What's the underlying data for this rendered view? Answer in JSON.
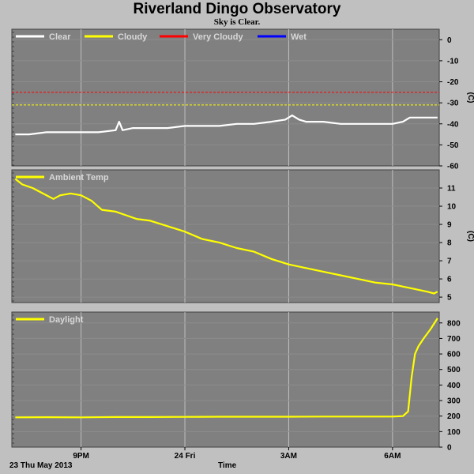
{
  "title": "Riverland Dingo Observatory",
  "subtitle": "Sky is Clear.",
  "footer": {
    "date_label": "23 Thu May 2013",
    "time_label": "Time"
  },
  "colors": {
    "plot_bg": "#808080",
    "page_bg": "#c0c0c0",
    "clear": "#ffffff",
    "cloudy": "#ffff00",
    "very_cloudy": "#ff0000",
    "wet": "#0000ff",
    "grid": "#bfbfbf"
  },
  "chart_data": [
    {
      "type": "line",
      "panel": "sky",
      "x_ticks": [
        {
          "label": "9PM",
          "x": 21.0
        },
        {
          "label": "24 Fri",
          "x": 24.0
        },
        {
          "label": "3AM",
          "x": 27.0
        },
        {
          "label": "6AM",
          "x": 30.0
        }
      ],
      "xlim": [
        19.0,
        31.35
      ],
      "ylim": [
        -60,
        5
      ],
      "y_ticks": [
        0,
        -10,
        -20,
        -30,
        -40,
        -50,
        -60
      ],
      "ylabel": "(C)",
      "legend": [
        "Clear",
        "Cloudy",
        "Very Cloudy",
        "Wet"
      ],
      "thresholds": [
        {
          "name": "Very Cloudy",
          "value": -25
        },
        {
          "name": "Cloudy",
          "value": -31
        }
      ],
      "series": [
        {
          "name": "Clear",
          "x": [
            19.1,
            19.5,
            20.0,
            20.5,
            21.0,
            21.5,
            22.0,
            22.1,
            22.2,
            22.5,
            23.0,
            23.5,
            24.0,
            24.5,
            25.0,
            25.5,
            26.0,
            26.5,
            26.9,
            27.1,
            27.3,
            27.5,
            28.0,
            28.5,
            29.0,
            29.5,
            30.0,
            30.3,
            30.5,
            30.8,
            31.1,
            31.3
          ],
          "y": [
            -45,
            -45,
            -44,
            -44,
            -44,
            -44,
            -43,
            -39,
            -43,
            -42,
            -42,
            -42,
            -41,
            -41,
            -41,
            -40,
            -40,
            -39,
            -38,
            -36,
            -38,
            -39,
            -39,
            -40,
            -40,
            -40,
            -40,
            -39,
            -37,
            -37,
            -37,
            -37
          ]
        }
      ]
    },
    {
      "type": "line",
      "panel": "ambient",
      "xlim": [
        19.0,
        31.35
      ],
      "ylim": [
        4.7,
        12
      ],
      "y_ticks": [
        11,
        10,
        9,
        8,
        7,
        6,
        5
      ],
      "ylabel": "(C)",
      "legend": [
        "Ambient Temp"
      ],
      "series": [
        {
          "name": "Ambient Temp",
          "x": [
            19.1,
            19.3,
            19.6,
            19.9,
            20.2,
            20.4,
            20.7,
            21.0,
            21.3,
            21.6,
            22.0,
            22.3,
            22.6,
            23.0,
            23.5,
            24.0,
            24.5,
            25.0,
            25.5,
            26.0,
            26.5,
            27.0,
            27.5,
            28.0,
            28.5,
            29.0,
            29.5,
            30.0,
            30.5,
            31.0,
            31.2,
            31.3
          ],
          "y": [
            11.5,
            11.2,
            11.0,
            10.7,
            10.4,
            10.6,
            10.7,
            10.6,
            10.3,
            9.8,
            9.7,
            9.5,
            9.3,
            9.2,
            8.9,
            8.6,
            8.2,
            8.0,
            7.7,
            7.5,
            7.1,
            6.8,
            6.6,
            6.4,
            6.2,
            6.0,
            5.8,
            5.7,
            5.5,
            5.3,
            5.2,
            5.3
          ]
        }
      ]
    },
    {
      "type": "line",
      "panel": "daylight",
      "xlim": [
        19.0,
        31.35
      ],
      "ylim": [
        0,
        870
      ],
      "y_ticks": [
        800,
        700,
        600,
        500,
        400,
        300,
        200,
        100,
        0
      ],
      "legend": [
        "Daylight"
      ],
      "series": [
        {
          "name": "Daylight",
          "x": [
            19.1,
            20.0,
            21.0,
            22.0,
            23.0,
            24.0,
            25.0,
            26.0,
            27.0,
            28.0,
            29.0,
            30.0,
            30.3,
            30.45,
            30.55,
            30.65,
            30.75,
            30.9,
            31.1,
            31.3
          ],
          "y": [
            192,
            193,
            192,
            194,
            194,
            195,
            196,
            196,
            196,
            197,
            197,
            197,
            200,
            230,
            450,
            600,
            650,
            700,
            760,
            830
          ]
        }
      ]
    }
  ]
}
